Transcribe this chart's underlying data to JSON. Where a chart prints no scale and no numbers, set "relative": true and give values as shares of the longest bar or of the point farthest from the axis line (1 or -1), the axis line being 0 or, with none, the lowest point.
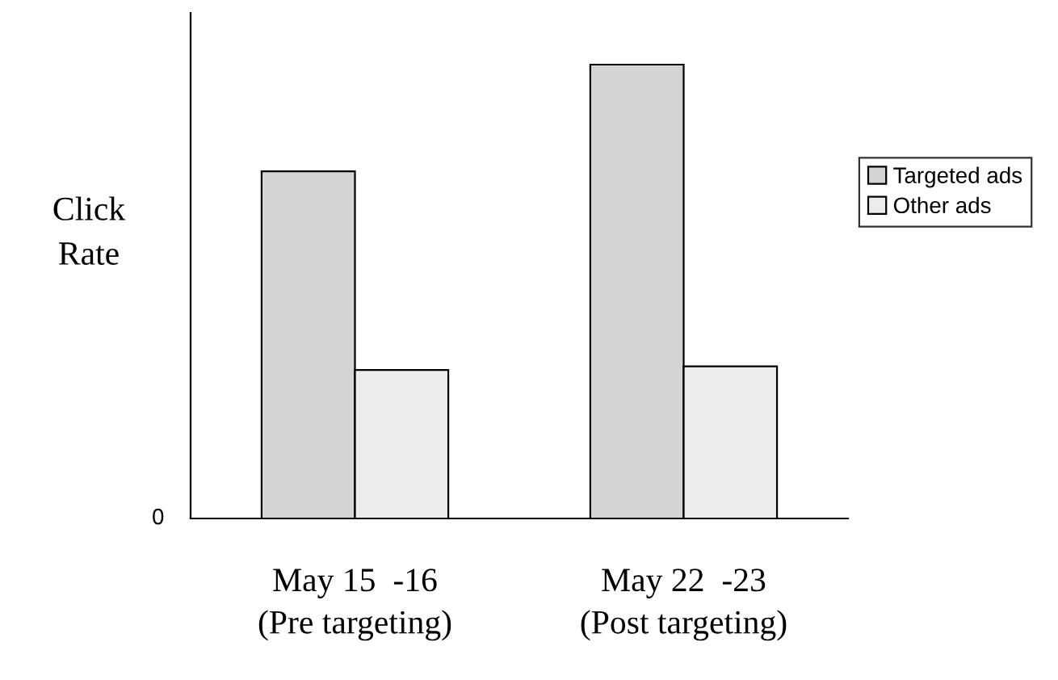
{
  "chart_data": {
    "type": "bar",
    "relative": true,
    "ylabel": "Click\nRate",
    "categories": [
      "May 15  -16\n(Pre targeting)",
      "May 22  -23\n(Post targeting)"
    ],
    "series": [
      {
        "name": "Targeted ads",
        "color": "#d4d4d4",
        "values": [
          0.765,
          1
        ]
      },
      {
        "name": "Other ads",
        "color": "#ececec",
        "values": [
          0.327,
          0.335
        ]
      }
    ],
    "annotations": [
      "0"
    ],
    "legend": "right",
    "grid": false
  }
}
